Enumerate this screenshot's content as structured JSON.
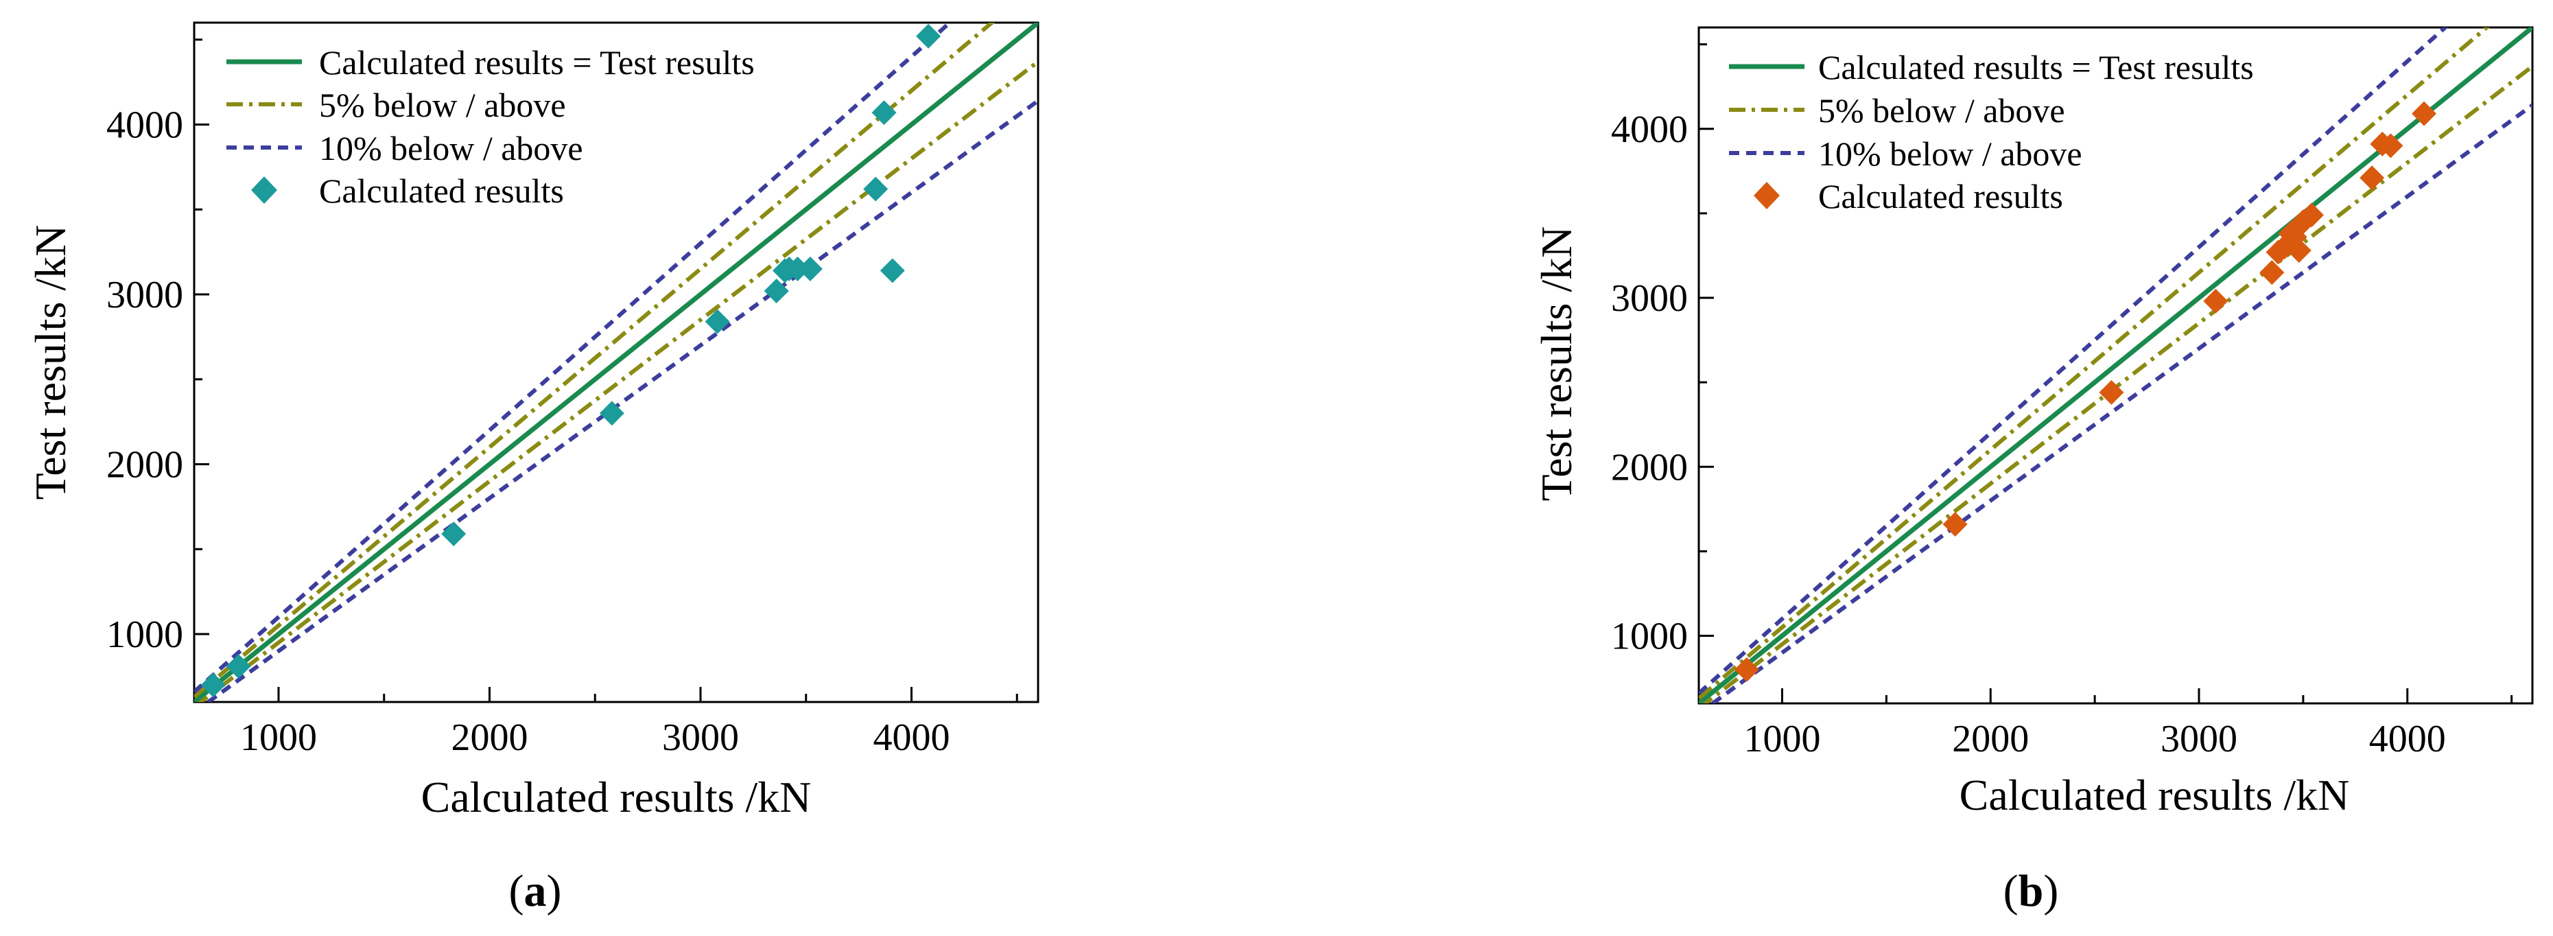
{
  "figure": {
    "panels": [
      {
        "label_open": "(",
        "label_letter": "a",
        "label_close": ")"
      },
      {
        "label_open": "(",
        "label_letter": "b",
        "label_close": ")"
      }
    ]
  },
  "chart_data": [
    {
      "type": "scatter",
      "xlabel": "Calculated results /kN",
      "ylabel": "Test results /kN",
      "xlim": [
        600,
        4600
      ],
      "ylim": [
        600,
        4600
      ],
      "xticks": [
        1000,
        2000,
        3000,
        4000
      ],
      "yticks": [
        1000,
        2000,
        3000,
        4000
      ],
      "grid": false,
      "legend_position": "top-left",
      "legend": [
        "Calculated results = Test results",
        "5% below / above",
        "10% below / above",
        "Calculated results"
      ],
      "reference_lines": [
        {
          "style": "solid",
          "color": "#1a8a4e",
          "slopes": [
            1.0
          ]
        },
        {
          "style": "dashdot",
          "color": "#8b8b14",
          "slopes": [
            1.05,
            0.95
          ]
        },
        {
          "style": "dashed",
          "color": "#3d3d9e",
          "slopes": [
            1.1,
            0.9
          ]
        }
      ],
      "series": [
        {
          "marker": "diamond",
          "color": "#1c9b9b",
          "x": [
            690,
            810,
            1830,
            2580,
            3080,
            3360,
            3400,
            3420,
            3460,
            3520,
            3830,
            3870,
            3910,
            4080
          ],
          "y": [
            700,
            810,
            1590,
            2300,
            2840,
            3020,
            3140,
            3150,
            3150,
            3150,
            3620,
            4070,
            3140,
            4520
          ]
        }
      ]
    },
    {
      "type": "scatter",
      "xlabel": "Calculated results /kN",
      "ylabel": "Test results /kN",
      "xlim": [
        600,
        4600
      ],
      "ylim": [
        600,
        4600
      ],
      "xticks": [
        1000,
        2000,
        3000,
        4000
      ],
      "yticks": [
        1000,
        2000,
        3000,
        4000
      ],
      "grid": false,
      "legend_position": "top-left",
      "legend": [
        "Calculated results = Test results",
        "5% below / above",
        "10% below / above",
        "Calculated results"
      ],
      "reference_lines": [
        {
          "style": "solid",
          "color": "#1a8a4e",
          "slopes": [
            1.0
          ]
        },
        {
          "style": "dashdot",
          "color": "#8b8b14",
          "slopes": [
            1.05,
            0.95
          ]
        },
        {
          "style": "dashed",
          "color": "#3d3d9e",
          "slopes": [
            1.1,
            0.9
          ]
        }
      ],
      "series": [
        {
          "marker": "diamond",
          "color": "#d95a0f",
          "x": [
            830,
            1830,
            2580,
            3080,
            3350,
            3380,
            3410,
            3440,
            3460,
            3480,
            3500,
            3540,
            3830,
            3880,
            3920,
            4080
          ],
          "y": [
            800,
            1660,
            2440,
            2980,
            3150,
            3270,
            3300,
            3380,
            3360,
            3280,
            3450,
            3490,
            3710,
            3910,
            3900,
            4090
          ]
        }
      ]
    }
  ]
}
